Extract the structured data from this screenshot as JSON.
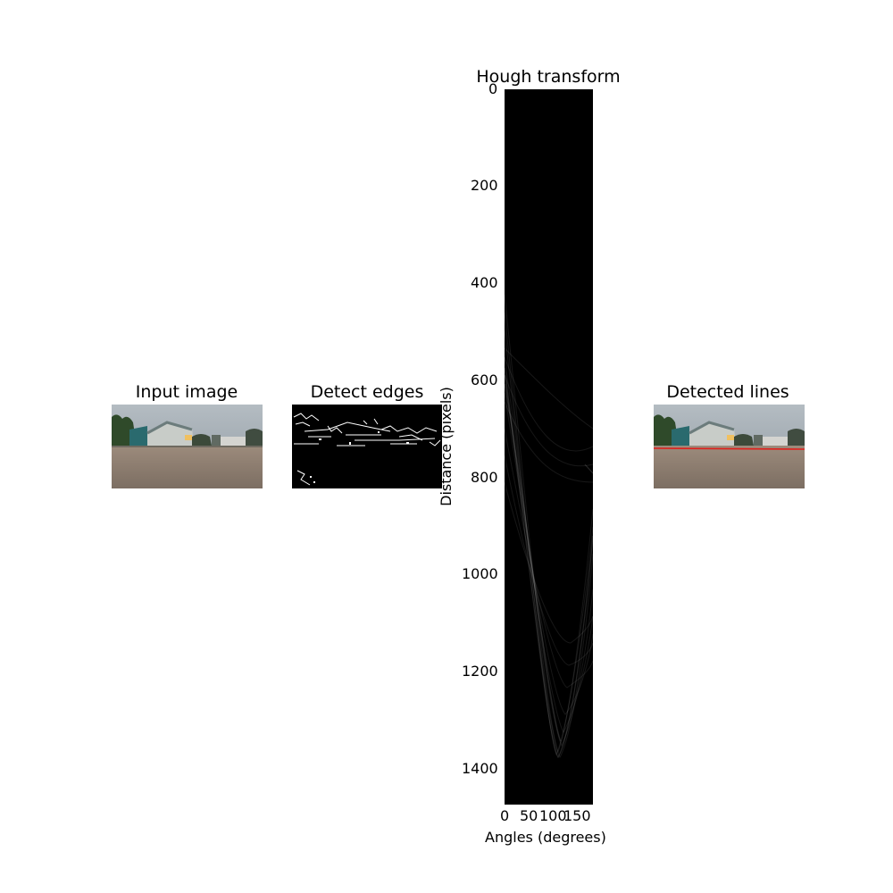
{
  "panels": {
    "input": {
      "title": "Input image"
    },
    "edges": {
      "title": "Detect edges"
    },
    "hough": {
      "title": "Hough transform",
      "xlabel": "Angles (degrees)",
      "ylabel": "Distance (pixels)",
      "xticks": [
        "0",
        "50",
        "100",
        "150"
      ],
      "yticks": [
        "0",
        "200",
        "400",
        "600",
        "800",
        "1000",
        "1200",
        "1400"
      ]
    },
    "lines": {
      "title": "Detected lines"
    }
  },
  "chart_data": {
    "type": "heatmap",
    "title": "Hough transform",
    "xlabel": "Angles (degrees)",
    "ylabel": "Distance (pixels)",
    "xlim": [
      0,
      180
    ],
    "ylim": [
      1475,
      0
    ],
    "xticks": [
      0,
      50,
      100,
      150
    ],
    "yticks": [
      0,
      200,
      400,
      600,
      800,
      1000,
      1200,
      1400
    ]
  },
  "colors": {
    "sky": "#a9b2b8",
    "water": "#8a7a6c",
    "detected_line": "#e0201c"
  }
}
